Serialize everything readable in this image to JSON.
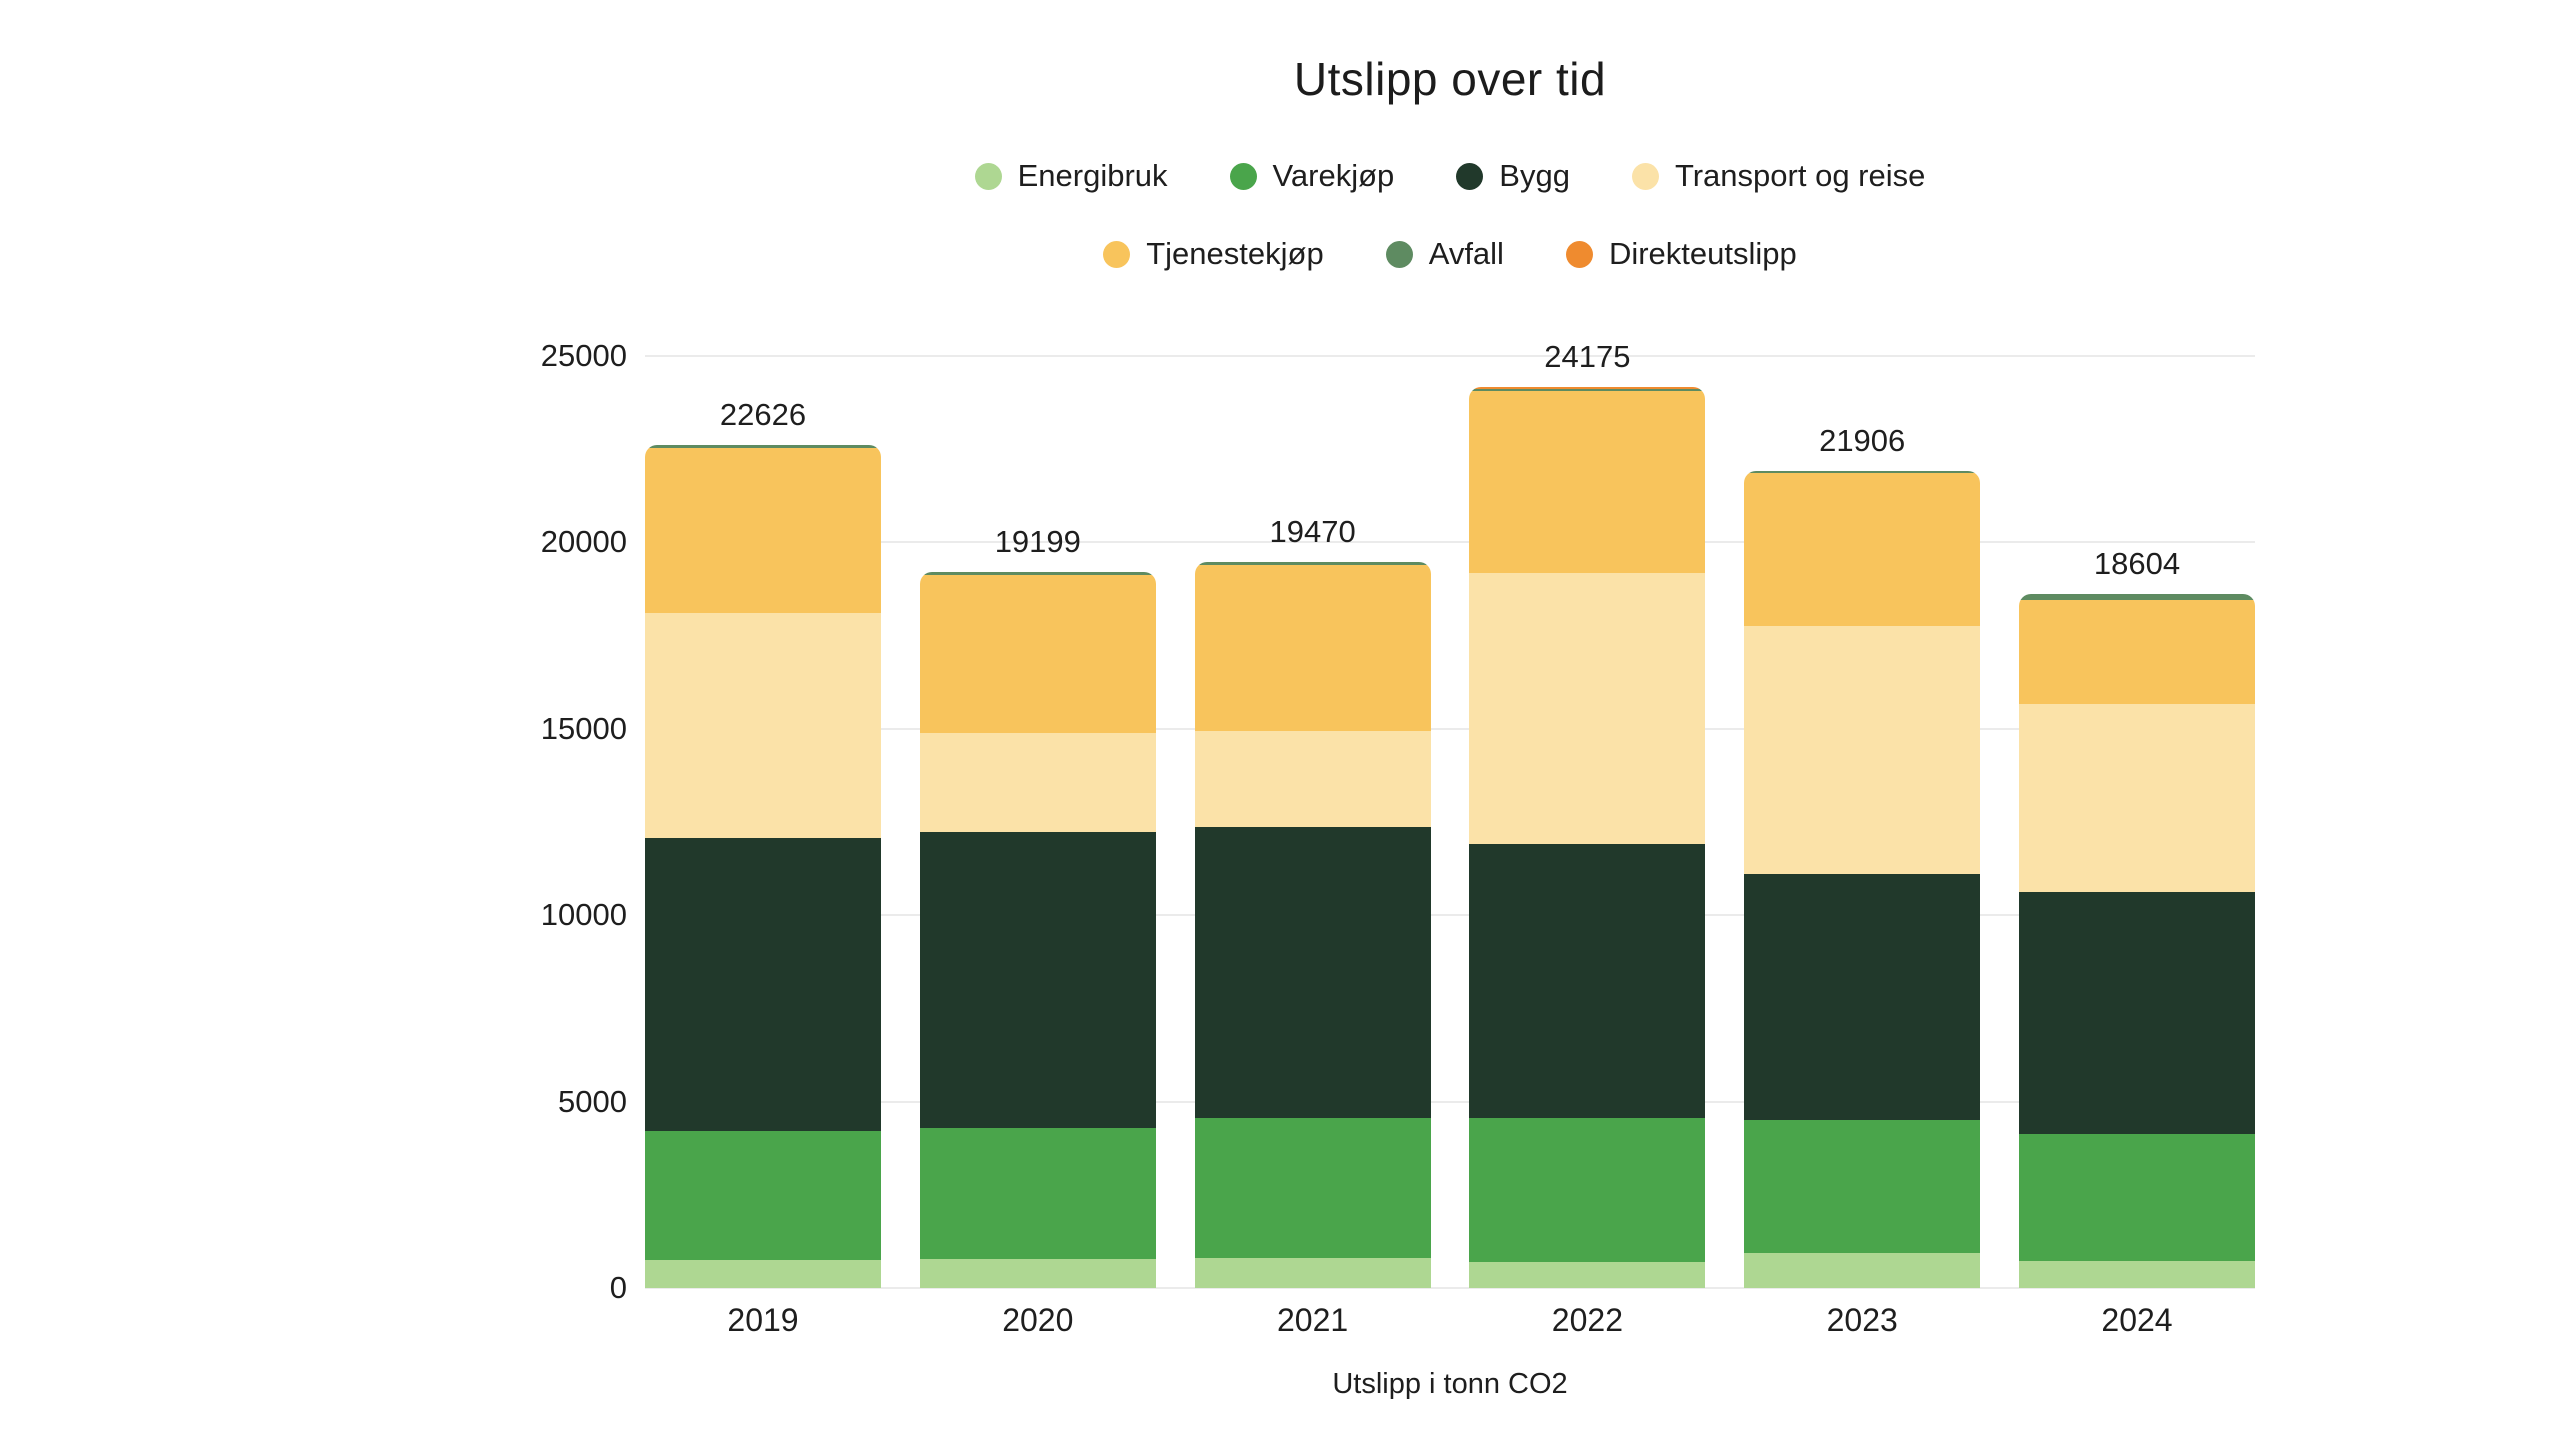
{
  "chart": {
    "title": "Utslipp over tid",
    "caption": "Utslipp i tonn CO2"
  },
  "colors": {
    "background": "#ffffff",
    "text": "#1e1e1e",
    "grid": "#ebebeb"
  },
  "chart_data": {
    "type": "bar",
    "stacked": true,
    "title": "Utslipp over tid",
    "xlabel": "Utslipp i tonn CO2",
    "ylabel": "",
    "grid": true,
    "legend_position": "top",
    "categories": [
      "2019",
      "2020",
      "2021",
      "2022",
      "2023",
      "2024"
    ],
    "series": [
      {
        "id": "energibruk",
        "name": "Energibruk",
        "color": "#AED792",
        "values": [
          760,
          780,
          800,
          700,
          950,
          720
        ]
      },
      {
        "id": "varekjop",
        "name": "Varekjøp",
        "color": "#4AA54B",
        "values": [
          3440,
          3500,
          3750,
          3850,
          3550,
          3400
        ]
      },
      {
        "id": "bygg",
        "name": "Bygg",
        "color": "#21392B",
        "values": [
          7870,
          7960,
          7820,
          7350,
          6610,
          6510
        ]
      },
      {
        "id": "transport-og-reise",
        "name": "Transport og reise",
        "color": "#FBE2A8",
        "values": [
          6050,
          2650,
          2570,
          7290,
          6640,
          5030
        ]
      },
      {
        "id": "tjenestekjop",
        "name": "Tjenestekjøp",
        "color": "#F8C45C",
        "values": [
          4406,
          4229,
          4450,
          4865,
          4106,
          2794
        ]
      },
      {
        "id": "avfall",
        "name": "Avfall",
        "color": "#5E8B61",
        "values": [
          100,
          80,
          80,
          60,
          50,
          150
        ]
      },
      {
        "id": "direkteutslipp",
        "name": "Direkteutslipp",
        "color": "#EF8B2F",
        "values": [
          0,
          0,
          0,
          60,
          0,
          0
        ]
      }
    ],
    "totals": [
      22626,
      19199,
      19470,
      24175,
      21906,
      18604
    ],
    "y_axis": {
      "min": 0,
      "max": 25000,
      "tick_step": 5000,
      "tick_labels": [
        "0",
        "5000",
        "10000",
        "15000",
        "20000",
        "25000"
      ]
    },
    "legend_rows": [
      [
        "energibruk",
        "varekjop",
        "bygg",
        "transport-og-reise"
      ],
      [
        "tjenestekjop",
        "avfall",
        "direkteutslipp"
      ]
    ]
  }
}
